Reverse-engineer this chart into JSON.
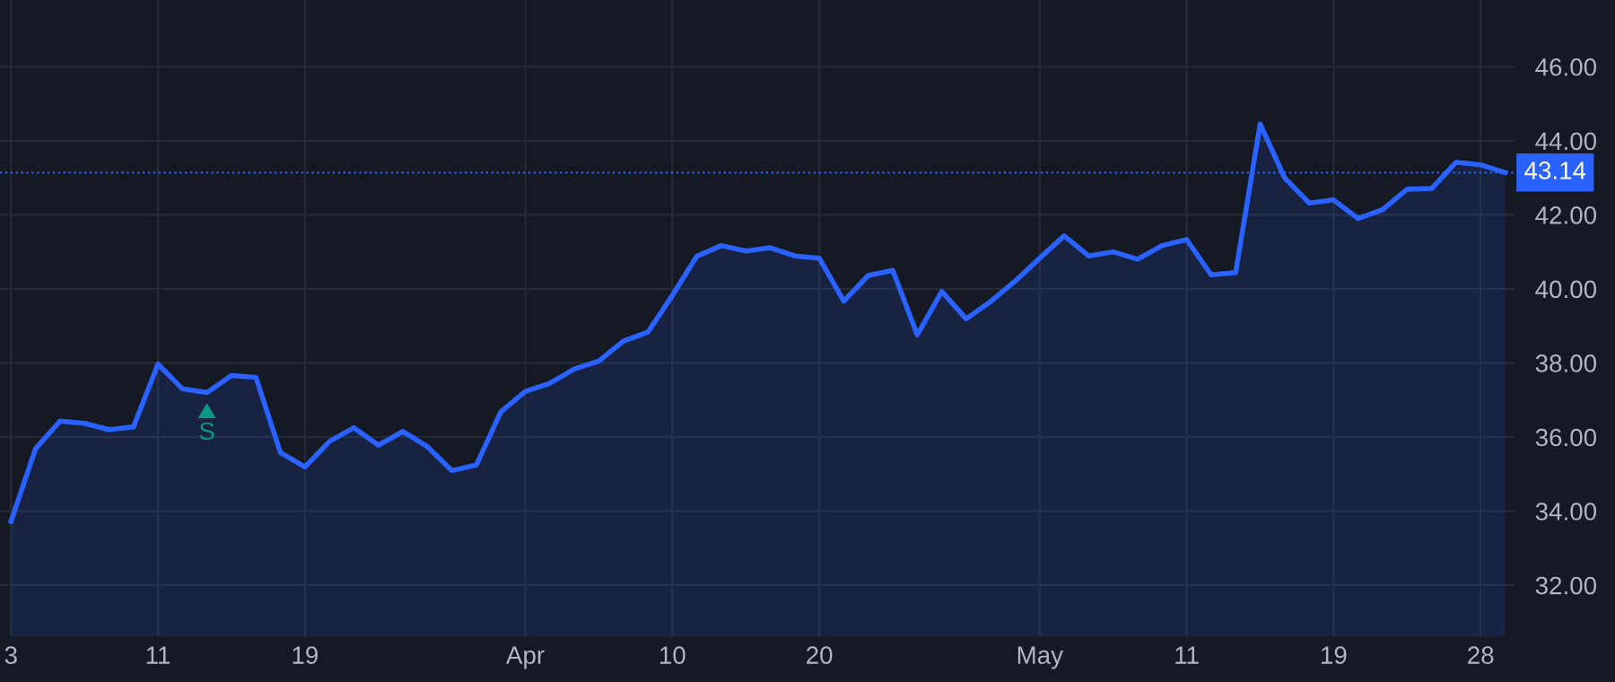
{
  "chart_data": {
    "type": "area",
    "categories": [
      "3",
      null,
      null,
      null,
      null,
      null,
      "11",
      null,
      null,
      null,
      null,
      null,
      "19",
      null,
      null,
      null,
      null,
      null,
      null,
      null,
      null,
      "Apr",
      null,
      null,
      null,
      null,
      null,
      "10",
      null,
      null,
      null,
      null,
      null,
      "20",
      null,
      null,
      null,
      null,
      null,
      null,
      null,
      null,
      "May",
      null,
      null,
      null,
      null,
      null,
      "11",
      null,
      null,
      null,
      null,
      null,
      "19",
      null,
      null,
      null,
      null,
      null,
      "28",
      null
    ],
    "series": [
      {
        "color": "#2962ff",
        "values": [
          33.72,
          35.68,
          36.43,
          36.37,
          36.2,
          36.27,
          37.97,
          37.3,
          37.2,
          37.66,
          37.61,
          35.58,
          35.19,
          35.88,
          36.25,
          35.78,
          36.15,
          35.74,
          35.09,
          35.25,
          36.68,
          37.23,
          37.45,
          37.84,
          38.05,
          38.59,
          38.83,
          39.82,
          40.88,
          41.17,
          41.02,
          41.11,
          40.89,
          40.83,
          39.67,
          40.36,
          40.5,
          38.76,
          39.93,
          39.19,
          39.66,
          40.21,
          40.83,
          41.43,
          40.89,
          41.0,
          40.8,
          41.17,
          41.33,
          40.38,
          40.44,
          44.45,
          43.0,
          42.32,
          42.4,
          41.9,
          42.14,
          42.69,
          42.71,
          43.42,
          43.35,
          43.14
        ]
      }
    ],
    "ylim": [
      30.6,
      47.8
    ],
    "yticks": [
      {
        "value": 32,
        "label": "32.00"
      },
      {
        "value": 34,
        "label": "34.00"
      },
      {
        "value": 36,
        "label": "36.00"
      },
      {
        "value": 38,
        "label": "38.00"
      },
      {
        "value": 40,
        "label": "40.00"
      },
      {
        "value": 42,
        "label": "42.00"
      },
      {
        "value": 44,
        "label": "44.00"
      },
      {
        "value": 46,
        "label": "46.00"
      }
    ],
    "ref_lines": [
      {
        "axis": "y",
        "value": 43.14,
        "label": "43.14",
        "color": "#2962ff",
        "line_style": "dotted"
      }
    ],
    "annotations": [
      "S"
    ],
    "grid": true,
    "marker": "none",
    "line_style": "solid"
  }
}
